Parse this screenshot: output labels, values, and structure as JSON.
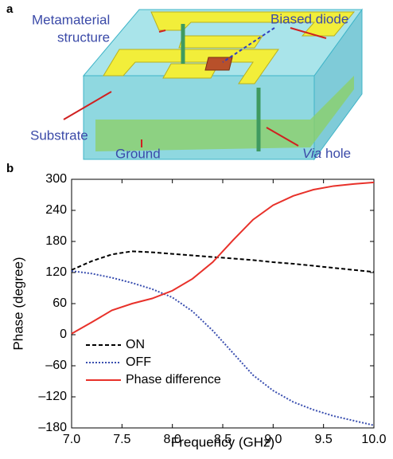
{
  "panel_a": {
    "label": "a",
    "annotations": {
      "metamaterial": [
        "Metamaterial",
        "structure"
      ],
      "diode": "Biased diode",
      "substrate": "Substrate",
      "ground": "Ground",
      "via": {
        "italic": "Via",
        "rest": "hole"
      }
    }
  },
  "chart_data": {
    "type": "line",
    "label": "b",
    "x_label": "Frequency (GHz)",
    "y_label": "Phase (degree)",
    "x": [
      7.0,
      7.2,
      7.4,
      7.6,
      7.8,
      8.0,
      8.2,
      8.4,
      8.6,
      8.8,
      9.0,
      9.2,
      9.4,
      9.6,
      9.8,
      10.0
    ],
    "series": [
      {
        "name": "ON",
        "color": "#000000",
        "dash": "dashed",
        "values": [
          125,
          142,
          155,
          161,
          159,
          156,
          153,
          150,
          147,
          144,
          140,
          137,
          133,
          129,
          125,
          121
        ]
      },
      {
        "name": "OFF",
        "color": "#3a4fb0",
        "dash": "dotted",
        "values": [
          123,
          118,
          110,
          100,
          88,
          72,
          45,
          8,
          -35,
          -78,
          -108,
          -130,
          -145,
          -157,
          -166,
          -175
        ]
      },
      {
        "name": "Phase difference",
        "color": "#e8312a",
        "dash": "solid",
        "values": [
          2,
          24,
          47,
          60,
          70,
          85,
          108,
          140,
          182,
          222,
          250,
          268,
          280,
          287,
          291,
          294
        ]
      }
    ],
    "xlim": [
      7.0,
      10.0
    ],
    "xticks": [
      {
        "value": 7.0,
        "label": "7.0"
      },
      7.5,
      {
        "value": 8.0,
        "label": "8.0"
      },
      8.5,
      {
        "value": 9.0,
        "label": "9.0"
      },
      9.5,
      {
        "value": 10.0,
        "label": "10.0"
      }
    ],
    "ylim": [
      -180,
      300
    ],
    "yticks": [
      {
        "value": -180,
        "label": "–180"
      },
      {
        "value": -120,
        "label": "–120"
      },
      {
        "value": -60,
        "label": "–60"
      },
      0,
      60,
      120,
      180,
      240,
      300
    ],
    "grid": false,
    "legend": "lower-left"
  }
}
